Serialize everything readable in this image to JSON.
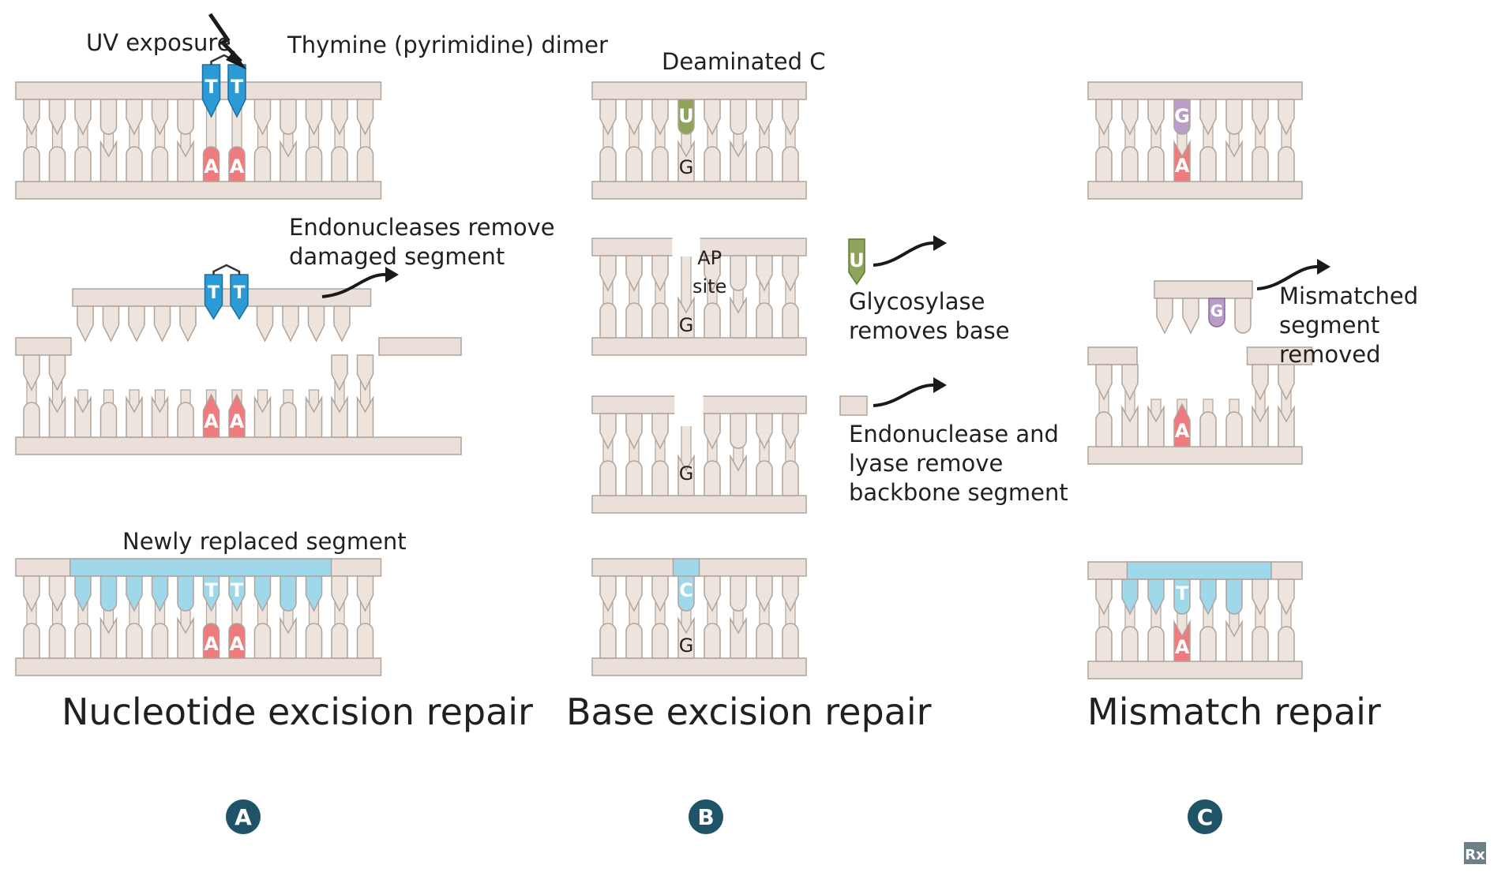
{
  "colors": {
    "rail": "#eae0d9",
    "tooth": "#ede4dd",
    "outline": "#b0a49b",
    "pyrimidine_blue": "#2b9ad6",
    "adenine_red": "#ee7b7d",
    "uracil_green": "#8ea45a",
    "guanine_purple": "#b99dc9",
    "replacement_blue": "#9fd8ea",
    "badge": "#1f5468"
  },
  "panels": [
    {
      "id": "A",
      "title": "Nucleotide excision repair",
      "badge": "A",
      "uv_label": "UV exposure",
      "dimer_label": "Thymine (pyrimidine) dimer",
      "removal_label": "Endonucleases remove\ndamaged segment",
      "replaced_label": "Newly replaced segment",
      "dimer_bases": [
        "T",
        "T"
      ],
      "paired_bases": [
        "A",
        "A"
      ]
    },
    {
      "id": "B",
      "title": "Base excision repair",
      "badge": "B",
      "deaminated_label": "Deaminated C",
      "damaged_base": "U",
      "partner_base": "G",
      "ap_site_label": "AP\nsite",
      "glycosylase_label": "Glycosylase\nremoves base",
      "endonuclease_label": "Endonuclease and\nlyase remove\nbackbone segment",
      "replacement_base": "C"
    },
    {
      "id": "C",
      "title": "Mismatch repair",
      "badge": "C",
      "mismatch_base": "G",
      "partner_base": "A",
      "removal_label": "Mismatched segment\nremoved",
      "replacement_base": "T"
    }
  ],
  "logo_text": "Rx"
}
